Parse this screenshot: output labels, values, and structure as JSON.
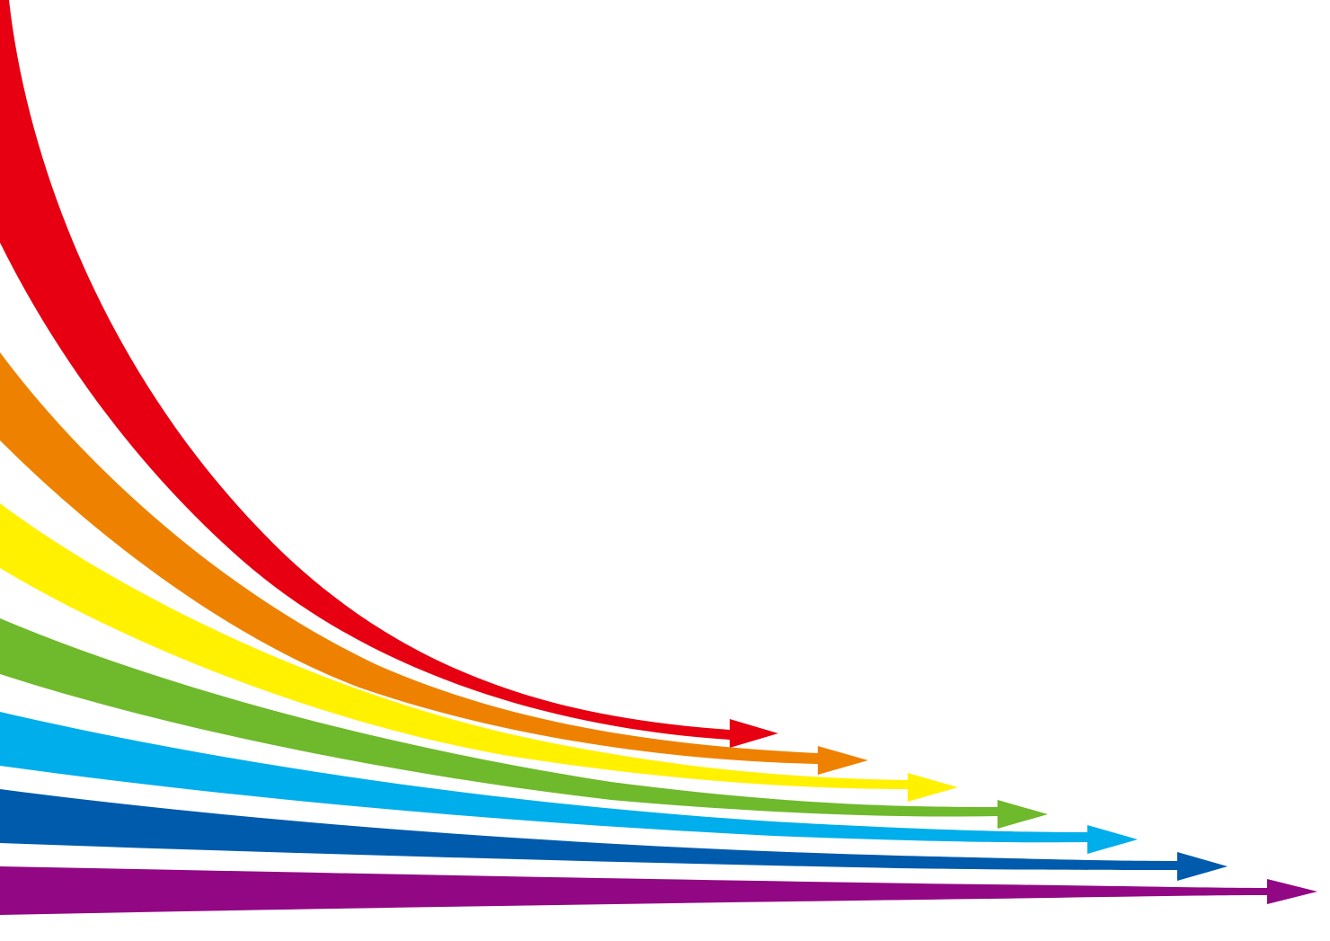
{
  "background": "#ffffff",
  "arrows": [
    {
      "name": "red-arrow",
      "color": "#e60012"
    },
    {
      "name": "orange-arrow",
      "color": "#ee8200"
    },
    {
      "name": "yellow-arrow",
      "color": "#fff100"
    },
    {
      "name": "green-arrow",
      "color": "#6fb92c"
    },
    {
      "name": "cyan-arrow",
      "color": "#00aeeb"
    },
    {
      "name": "blue-arrow",
      "color": "#005bac"
    },
    {
      "name": "purple-arrow",
      "color": "#920783"
    }
  ]
}
